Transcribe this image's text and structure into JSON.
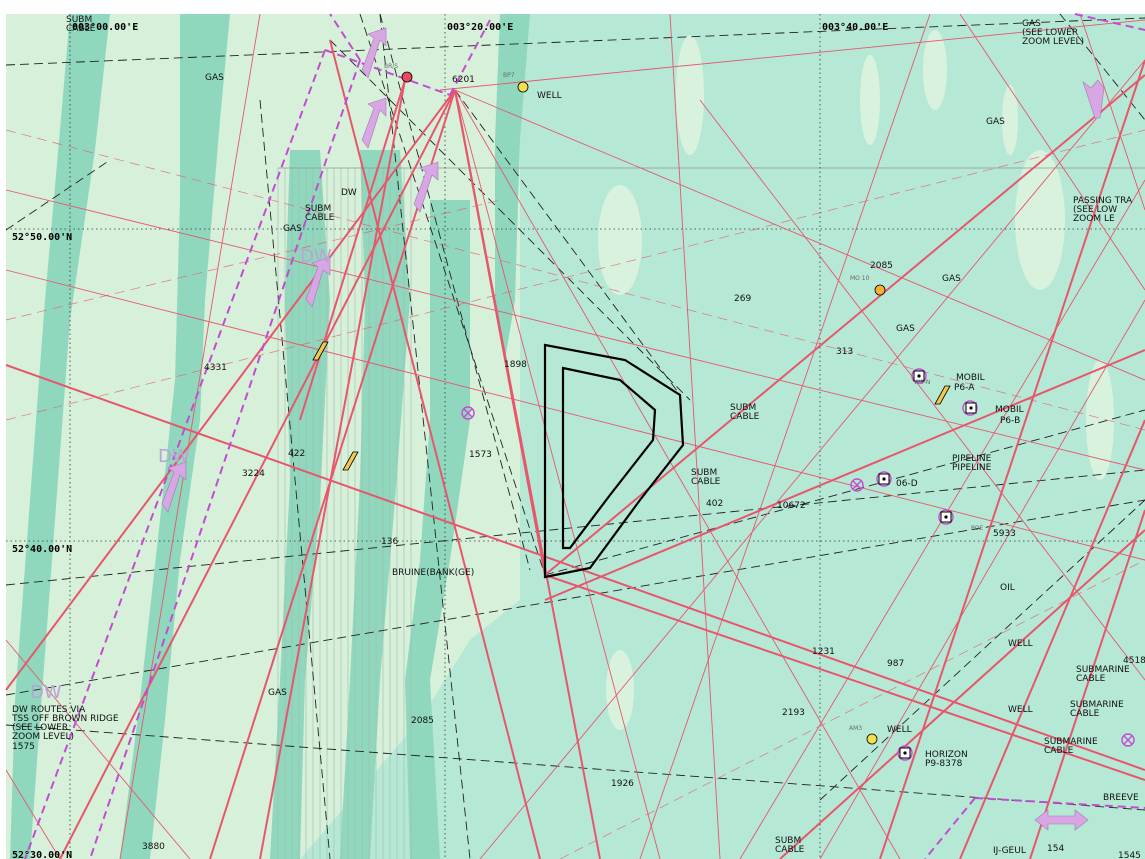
{
  "coords": {
    "lon1": "003°00.00'E",
    "lon2": "003°20.00'E",
    "lon3": "003°40.00'E",
    "lat1": "52°50.00'N",
    "lat2": "52°40.00'N",
    "lat3": "52°30.00'N"
  },
  "labels": {
    "subm_cable_top": "SUBM\nCABLE",
    "gas_top_left": "GAS",
    "br_s": "BR/S",
    "n6201": "6201",
    "bp7": "BP7",
    "well_top": "WELL",
    "gas_see_lower": "GAS\n(SEE LOWER\nZOOM LEVEL)",
    "gas_right": "GAS",
    "passing": "PASSING TRA\n(SEE LOW\nZOOM LE",
    "dw_1": "DW",
    "subm_cable_left": "SUBM\nCABLE",
    "gas_left2": "GAS",
    "dw_big_1": "DW",
    "n4331": "4331",
    "n1898": "1898",
    "n1573": "1573",
    "n422": "422",
    "n3224": "3224",
    "dw_big_2": "DW",
    "n136": "136",
    "bruine": "BRUINE(BANK(GE)",
    "mo10": "MO 10",
    "n2085_r": "2085",
    "gas_r2": "GAS",
    "n269": "269",
    "gas_r3": "GAS",
    "n313": "313",
    "mobil_1": "MOBIL",
    "p6a": "P6-A",
    "ws_n": "WS-N",
    "mobil_2": "MOBIL",
    "p6b": "P6-B",
    "subm_cable_c": "SUBM\nCABLE",
    "subm_cable_c2": "SUBM\nCABLE",
    "n402": "402",
    "n10672": "10672",
    "pipeline": "PIPELINE\nPIPELINE",
    "p06d": "06-D",
    "poe": "POE",
    "n5933": "5933",
    "oil": "OIL",
    "well_r": "WELL",
    "n1231": "1231",
    "n987": "987",
    "submarine_1": "SUBMARINE\nCABLE",
    "n4518": "4518",
    "well_r2": "WELL",
    "submarine_2": "SUBMARINE\nCABLE",
    "submarine_3": "SUBMARINE\nCABLE",
    "am3": "AM3",
    "well_r3": "WELL",
    "horizon": "HORIZON\nP9-8378",
    "n2193": "2193",
    "n2085_b": "2085",
    "gas_b": "GAS",
    "dw_routes": "DW ROUTES VIA\nTSS OFF BROWN RIDGE\n(SEE LOWER\nZOOM LEVEL)",
    "n1575": "1575",
    "dw_big_3": "DW",
    "n1926": "1926",
    "n3880": "3880",
    "subm_cable_b": "SUBM\nCABLE",
    "ijgeul": "IJ-GEUL",
    "n154": "154",
    "n1545": "1545",
    "breeve": "BREEVE"
  },
  "colors": {
    "water": "#b6e8d6",
    "shoal_dark": "#8ed8bd",
    "shoal_light": "#d9f2dd",
    "route": "#e8566c",
    "tss": "#c24dd0",
    "zone": "#000000"
  }
}
